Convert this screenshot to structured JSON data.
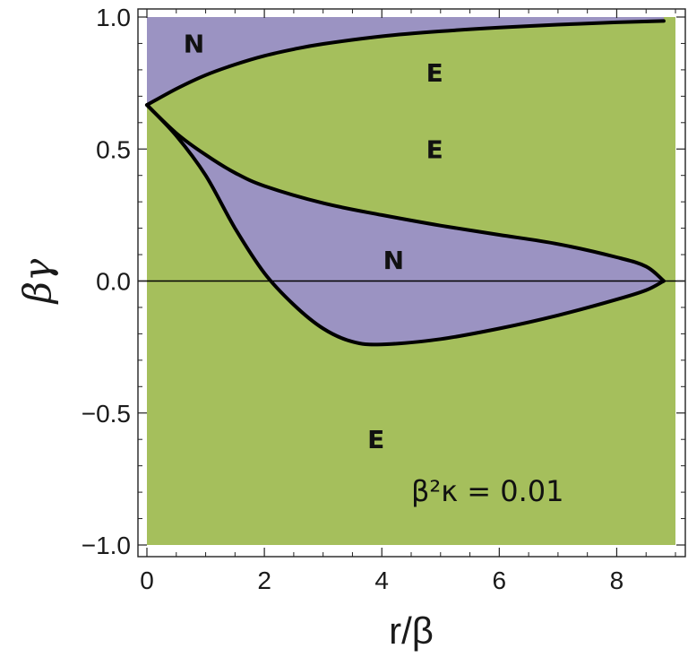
{
  "chart_data": {
    "type": "area",
    "xlabel": "r/β",
    "ylabel": "βγ",
    "xlim": [
      0,
      9
    ],
    "ylim": [
      -1.0,
      1.0
    ],
    "x_ticks": [
      {
        "value": 0,
        "label": "0"
      },
      {
        "value": 2,
        "label": "2"
      },
      {
        "value": 4,
        "label": "4"
      },
      {
        "value": 6,
        "label": "6"
      },
      {
        "value": 8,
        "label": "8"
      }
    ],
    "y_ticks": [
      {
        "value": -1.0,
        "label": "−1.0"
      },
      {
        "value": -0.5,
        "label": "−0.5"
      },
      {
        "value": 0.0,
        "label": "0.0"
      },
      {
        "value": 0.5,
        "label": "0.5"
      },
      {
        "value": 1.0,
        "label": "1.0"
      }
    ],
    "annotation": {
      "text": "β²κ = 0.01",
      "x": 5.8,
      "y": -0.8
    },
    "colors": {
      "E": "#a5bf5c",
      "N": "#9b93c2",
      "curve": "#000000"
    },
    "regions": [
      {
        "label": "E",
        "x": 4.9,
        "y": 0.79
      },
      {
        "label": "E",
        "x": 4.9,
        "y": 0.5
      },
      {
        "label": "E",
        "x": 3.9,
        "y": -0.6
      },
      {
        "label": "N",
        "x": 0.8,
        "y": 0.9
      },
      {
        "label": "N",
        "x": 4.2,
        "y": 0.08
      }
    ],
    "series": [
      {
        "x": [
          0,
          0.5,
          1,
          1.5,
          2,
          2.5,
          3,
          4,
          5,
          6,
          7,
          8,
          8.8
        ],
        "y": [
          0.667,
          0.728,
          0.78,
          0.82,
          0.853,
          0.878,
          0.898,
          0.927,
          0.946,
          0.96,
          0.971,
          0.98,
          0.985
        ]
      },
      {
        "x": [
          0,
          0.5,
          1,
          1.5,
          2,
          3,
          4,
          5,
          6,
          7,
          8,
          8.5,
          8.8
        ],
        "y": [
          0.667,
          0.56,
          0.478,
          0.41,
          0.36,
          0.295,
          0.25,
          0.21,
          0.175,
          0.14,
          0.09,
          0.055,
          0.0
        ]
      },
      {
        "x": [
          0,
          0.5,
          1,
          1.5,
          2,
          2.5,
          3,
          3.5,
          4,
          5,
          6,
          7,
          8,
          8.5,
          8.8
        ],
        "y": [
          0.667,
          0.55,
          0.4,
          0.2,
          0.03,
          -0.09,
          -0.18,
          -0.23,
          -0.24,
          -0.22,
          -0.18,
          -0.13,
          -0.07,
          -0.035,
          0.0
        ]
      }
    ]
  }
}
